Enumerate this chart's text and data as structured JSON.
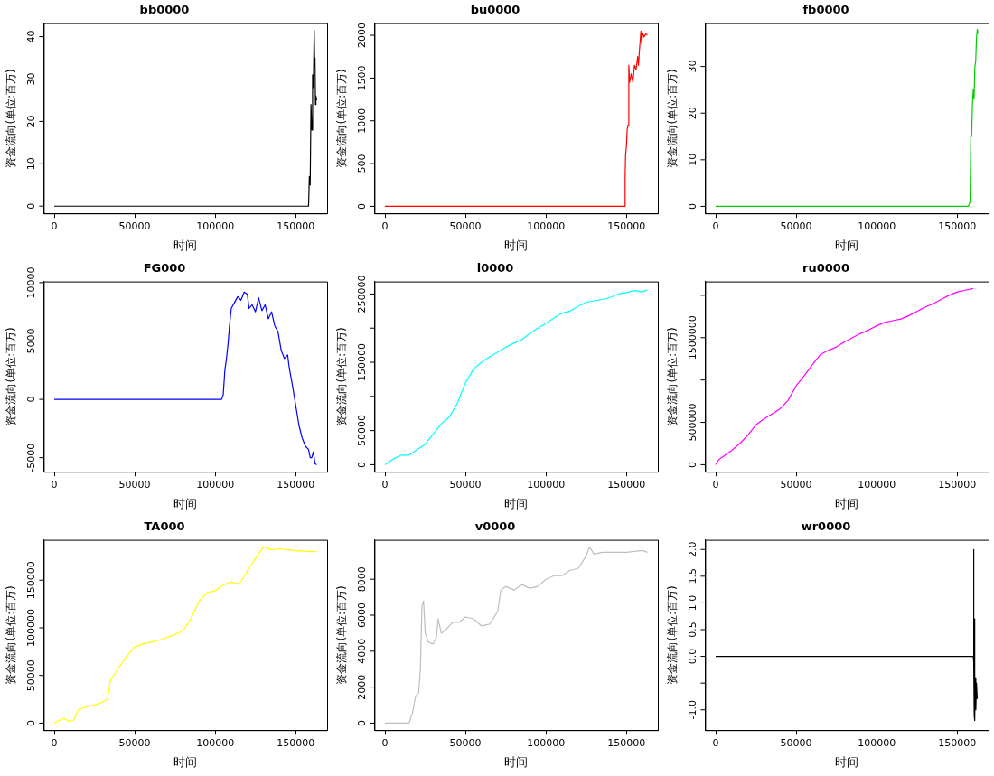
{
  "chart_data": [
    {
      "type": "line",
      "title": "bb0000",
      "xlabel": "时间",
      "ylabel": "资金流向(单位:百万)",
      "xlim": [
        -6520,
        169520
      ],
      "xticks": [
        0,
        50000,
        100000,
        150000
      ],
      "ylim": [
        -1.7,
        43.2
      ],
      "yticks": [
        0,
        10,
        20,
        30,
        40
      ],
      "series": [
        {
          "color": "#000000",
          "x": [
            0,
            158000,
            158500,
            159000,
            159500,
            160000,
            160500,
            161000,
            161500,
            161800,
            162000,
            162300,
            162600,
            163000
          ],
          "values": [
            0,
            0,
            7,
            5,
            24,
            18,
            31,
            28,
            41.5,
            33,
            35,
            24,
            26,
            25
          ]
        }
      ]
    },
    {
      "type": "line",
      "title": "bu0000",
      "xlabel": "时间",
      "ylabel": "资金流向(单位:百万)",
      "xlim": [
        -6520,
        169520
      ],
      "xticks": [
        0,
        50000,
        100000,
        150000
      ],
      "ylim": [
        -82,
        2142
      ],
      "yticks": [
        0,
        500,
        1000,
        1500,
        2000
      ],
      "series": [
        {
          "color": "#ff0000",
          "x": [
            0,
            149000,
            149200,
            149500,
            150000,
            150500,
            151000,
            151500,
            152000,
            153000,
            154000,
            155000,
            156000,
            157000,
            157500,
            158000,
            159000,
            159500,
            160000,
            161000,
            162000,
            163000
          ],
          "values": [
            0,
            0,
            350,
            600,
            700,
            900,
            950,
            1650,
            1450,
            1550,
            1450,
            1650,
            1600,
            1750,
            1650,
            1800,
            2050,
            1900,
            2030,
            1980,
            2020,
            2000
          ]
        }
      ]
    },
    {
      "type": "line",
      "title": "fb0000",
      "xlabel": "时间",
      "ylabel": "资金流向(单位:百万)",
      "xlim": [
        -6520,
        169520
      ],
      "xticks": [
        0,
        50000,
        100000,
        150000
      ],
      "ylim": [
        -1.5,
        39.3
      ],
      "yticks": [
        0,
        10,
        20,
        30
      ],
      "series": [
        {
          "color": "#00cd00",
          "x": [
            0,
            157000,
            157500,
            158000,
            158500,
            159000,
            159500,
            160000,
            160500,
            161000,
            161500,
            162000,
            162500,
            163000
          ],
          "values": [
            0,
            0,
            0.5,
            1,
            15,
            15,
            22,
            25,
            23,
            30,
            31,
            36,
            38,
            37
          ]
        }
      ]
    },
    {
      "type": "line",
      "title": "FG000",
      "xlabel": "时间",
      "ylabel": "资金流向(单位:百万)",
      "xlim": [
        -6520,
        169520
      ],
      "xticks": [
        0,
        50000,
        100000,
        150000
      ],
      "ylim": [
        -6200,
        10100
      ],
      "yticks": [
        -5000,
        0,
        5000,
        10000
      ],
      "series": [
        {
          "color": "#0000ff",
          "x": [
            0,
            104000,
            105000,
            106000,
            107000,
            108000,
            109000,
            110000,
            112000,
            114000,
            116000,
            118000,
            120000,
            121000,
            123000,
            125000,
            127000,
            129000,
            131000,
            133000,
            135000,
            137000,
            139000,
            141000,
            143000,
            145000,
            146000,
            148000,
            150000,
            152000,
            154000,
            156000,
            158000,
            159000,
            160000,
            161000,
            162000,
            163000
          ],
          "values": [
            0,
            0,
            400,
            2500,
            3500,
            4800,
            6500,
            7800,
            8300,
            8800,
            8500,
            9200,
            9000,
            7800,
            8100,
            7500,
            8700,
            7600,
            8100,
            6900,
            7500,
            6300,
            5800,
            4200,
            3500,
            3800,
            2700,
            1200,
            -500,
            -2200,
            -3300,
            -4000,
            -4300,
            -5000,
            -5000,
            -4500,
            -5500,
            -5600
          ]
        }
      ]
    },
    {
      "type": "line",
      "title": "l0000",
      "xlabel": "时间",
      "ylabel": "资金流向(单位:百万)",
      "xlim": [
        -6520,
        169520
      ],
      "xticks": [
        0,
        50000,
        100000,
        150000
      ],
      "ylim": [
        -10300,
        268300
      ],
      "yticks": [
        0,
        50000,
        {
          "value": 100000,
          "label": null
        },
        150000,
        {
          "value": 200000,
          "label": null
        },
        250000
      ],
      "series": [
        {
          "color": "#00ffff",
          "x": [
            0,
            5000,
            10000,
            15000,
            20000,
            25000,
            30000,
            35000,
            40000,
            45000,
            50000,
            55000,
            60000,
            65000,
            70000,
            75000,
            80000,
            85000,
            90000,
            95000,
            100000,
            105000,
            110000,
            115000,
            120000,
            125000,
            130000,
            135000,
            140000,
            145000,
            150000,
            155000,
            160000,
            163000
          ],
          "values": [
            0,
            8000,
            14000,
            14000,
            22000,
            30000,
            45000,
            60000,
            70000,
            90000,
            120000,
            140000,
            150000,
            158000,
            165000,
            172000,
            178000,
            183000,
            192000,
            200000,
            207000,
            215000,
            222000,
            225000,
            232000,
            238000,
            240000,
            242000,
            245000,
            250000,
            252000,
            255000,
            253000,
            256000
          ]
        }
      ]
    },
    {
      "type": "line",
      "title": "ru0000",
      "xlabel": "时间",
      "ylabel": "资金流向(单位:百万)",
      "xlim": [
        -6520,
        169520
      ],
      "xticks": [
        0,
        50000,
        100000,
        150000
      ],
      "ylim": [
        -83000,
        2163000
      ],
      "yticks": [
        0,
        500000,
        {
          "value": 1000000,
          "label": null
        },
        1500000,
        {
          "value": 2000000,
          "label": null
        }
      ],
      "series": [
        {
          "color": "#ff00ff",
          "x": [
            0,
            2000,
            5000,
            10000,
            15000,
            20000,
            25000,
            30000,
            35000,
            40000,
            45000,
            50000,
            55000,
            60000,
            65000,
            70000,
            75000,
            80000,
            85000,
            90000,
            95000,
            100000,
            105000,
            110000,
            115000,
            120000,
            125000,
            130000,
            135000,
            140000,
            145000,
            150000,
            155000,
            160000
          ],
          "values": [
            0,
            60000,
            100000,
            170000,
            250000,
            350000,
            470000,
            540000,
            600000,
            660000,
            760000,
            930000,
            1050000,
            1180000,
            1300000,
            1350000,
            1390000,
            1450000,
            1500000,
            1550000,
            1590000,
            1640000,
            1680000,
            1700000,
            1720000,
            1760000,
            1810000,
            1860000,
            1900000,
            1950000,
            2000000,
            2040000,
            2060000,
            2080000
          ]
        }
      ]
    },
    {
      "type": "line",
      "title": "TA000",
      "xlabel": "时间",
      "ylabel": "资金流向(单位:百万)",
      "xlim": [
        -6520,
        169520
      ],
      "xticks": [
        0,
        50000,
        100000,
        150000
      ],
      "ylim": [
        -7400,
        192400
      ],
      "yticks": [
        0,
        50000,
        100000,
        150000
      ],
      "series": [
        {
          "color": "#ffff00",
          "x": [
            0,
            3000,
            6000,
            9000,
            12000,
            15000,
            20000,
            25000,
            30000,
            33000,
            35000,
            40000,
            45000,
            50000,
            55000,
            60000,
            65000,
            70000,
            75000,
            80000,
            85000,
            90000,
            95000,
            100000,
            105000,
            110000,
            115000,
            120000,
            125000,
            130000,
            135000,
            140000,
            150000,
            160000,
            163000
          ],
          "values": [
            0,
            3000,
            5000,
            2000,
            3000,
            14000,
            17000,
            19000,
            22000,
            25000,
            45000,
            58000,
            70000,
            80000,
            83000,
            85000,
            87000,
            90000,
            93000,
            97000,
            110000,
            128000,
            137000,
            139000,
            145000,
            148000,
            146000,
            160000,
            173000,
            185000,
            182000,
            183000,
            181000,
            180000,
            180000
          ]
        }
      ]
    },
    {
      "type": "line",
      "title": "v0000",
      "xlabel": "时间",
      "ylabel": "资金流向(单位:百万)",
      "xlim": [
        -6520,
        169520
      ],
      "xticks": [
        0,
        50000,
        100000,
        150000
      ],
      "ylim": [
        -390,
        10190
      ],
      "yticks": [
        0,
        2000,
        4000,
        6000,
        8000
      ],
      "series": [
        {
          "color": "#bebebe",
          "x": [
            0,
            15000,
            16000,
            17000,
            19000,
            21000,
            22000,
            23000,
            24000,
            25000,
            27000,
            30000,
            32000,
            33000,
            35000,
            38000,
            42000,
            46000,
            50000,
            55000,
            60000,
            65000,
            70000,
            72000,
            75000,
            80000,
            85000,
            90000,
            95000,
            100000,
            105000,
            110000,
            115000,
            120000,
            125000,
            127000,
            130000,
            135000,
            140000,
            150000,
            160000,
            163000
          ],
          "values": [
            0,
            0,
            300,
            500,
            1500,
            1700,
            3000,
            6500,
            6800,
            5000,
            4500,
            4400,
            4800,
            5800,
            5000,
            5200,
            5600,
            5600,
            5900,
            5800,
            5400,
            5500,
            6200,
            7400,
            7600,
            7400,
            7700,
            7500,
            7600,
            8000,
            8200,
            8200,
            8500,
            8600,
            9300,
            9800,
            9400,
            9500,
            9500,
            9500,
            9600,
            9500
          ]
        }
      ]
    },
    {
      "type": "line",
      "title": "wr0000",
      "xlabel": "时间",
      "ylabel": "资金流向(单位:百万)",
      "xlim": [
        -6520,
        169520
      ],
      "xticks": [
        0,
        50000,
        100000,
        150000
      ],
      "ylim": [
        -1.38,
        2.18
      ],
      "yticks": [
        {
          "value": -1,
          "label": "-1.0"
        },
        {
          "value": -0.5,
          "label": null
        },
        {
          "value": 0,
          "label": "0.0"
        },
        {
          "value": 0.5,
          "label": "0.5"
        },
        {
          "value": 1,
          "label": "1.0"
        },
        {
          "value": 1.5,
          "label": "1.5"
        },
        {
          "value": 2,
          "label": "2.0"
        }
      ],
      "series": [
        {
          "color": "#000000",
          "x": [
            0,
            160000,
            160200,
            160400,
            160600,
            160800,
            161000,
            161300,
            161600,
            162000,
            162500
          ],
          "values": [
            0,
            0,
            2.0,
            -0.1,
            -1.1,
            0.7,
            -1.2,
            -0.4,
            -1.0,
            -0.5,
            -0.8
          ]
        }
      ]
    }
  ]
}
